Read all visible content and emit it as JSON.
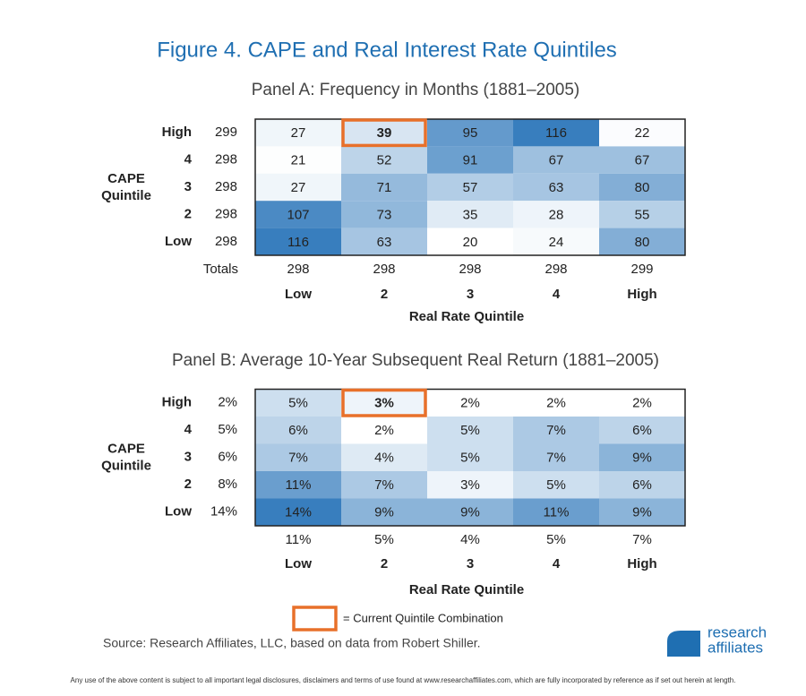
{
  "title": "Figure 4.  CAPE and Real Interest Rate Quintiles",
  "row_axis_title": [
    "CAPE",
    "Quintile"
  ],
  "row_labels": [
    "High",
    "4",
    "3",
    "2",
    "Low"
  ],
  "col_labels": [
    "Low",
    "2",
    "3",
    "4",
    "High"
  ],
  "col_axis_title": "Real Rate Quintile",
  "highlight": [
    0,
    1
  ],
  "panels": [
    {
      "title": "Panel A: Frequency in Months (1881–2005)",
      "row_totals": [
        "299",
        "298",
        "298",
        "298",
        "298"
      ],
      "totals_label": "Totals",
      "col_totals": [
        "298",
        "298",
        "298",
        "298",
        "299"
      ],
      "cells": [
        [
          {
            "value": 27,
            "label": "27"
          },
          {
            "value": 39,
            "label": "39"
          },
          {
            "value": 95,
            "label": "95"
          },
          {
            "value": 116,
            "label": "116"
          },
          {
            "value": 22,
            "label": "22"
          }
        ],
        [
          {
            "value": 21,
            "label": "21"
          },
          {
            "value": 52,
            "label": "52"
          },
          {
            "value": 91,
            "label": "91"
          },
          {
            "value": 67,
            "label": "67"
          },
          {
            "value": 67,
            "label": "67"
          }
        ],
        [
          {
            "value": 27,
            "label": "27"
          },
          {
            "value": 71,
            "label": "71"
          },
          {
            "value": 57,
            "label": "57"
          },
          {
            "value": 63,
            "label": "63"
          },
          {
            "value": 80,
            "label": "80"
          }
        ],
        [
          {
            "value": 107,
            "label": "107"
          },
          {
            "value": 73,
            "label": "73"
          },
          {
            "value": 35,
            "label": "35"
          },
          {
            "value": 28,
            "label": "28"
          },
          {
            "value": 55,
            "label": "55"
          }
        ],
        [
          {
            "value": 116,
            "label": "116"
          },
          {
            "value": 63,
            "label": "63"
          },
          {
            "value": 20,
            "label": "20"
          },
          {
            "value": 24,
            "label": "24"
          },
          {
            "value": 80,
            "label": "80"
          }
        ]
      ]
    },
    {
      "title": "Panel B: Average 10-Year Subsequent Real Return (1881–2005)",
      "row_totals": [
        "2%",
        "5%",
        "6%",
        "8%",
        "14%"
      ],
      "col_totals": [
        "11%",
        "5%",
        "4%",
        "5%",
        "7%"
      ],
      "cells": [
        [
          {
            "value": 5,
            "label": "5%"
          },
          {
            "value": 3,
            "label": "3%"
          },
          {
            "value": 2,
            "label": "2%"
          },
          {
            "value": 2,
            "label": "2%"
          },
          {
            "value": 2,
            "label": "2%"
          }
        ],
        [
          {
            "value": 6,
            "label": "6%"
          },
          {
            "value": 2,
            "label": "2%"
          },
          {
            "value": 5,
            "label": "5%"
          },
          {
            "value": 7,
            "label": "7%"
          },
          {
            "value": 6,
            "label": "6%"
          }
        ],
        [
          {
            "value": 7,
            "label": "7%"
          },
          {
            "value": 4,
            "label": "4%"
          },
          {
            "value": 5,
            "label": "5%"
          },
          {
            "value": 7,
            "label": "7%"
          },
          {
            "value": 9,
            "label": "9%"
          }
        ],
        [
          {
            "value": 11,
            "label": "11%"
          },
          {
            "value": 7,
            "label": "7%"
          },
          {
            "value": 3,
            "label": "3%"
          },
          {
            "value": 5,
            "label": "5%"
          },
          {
            "value": 6,
            "label": "6%"
          }
        ],
        [
          {
            "value": 14,
            "label": "14%"
          },
          {
            "value": 9,
            "label": "9%"
          },
          {
            "value": 9,
            "label": "9%"
          },
          {
            "value": 11,
            "label": "11%"
          },
          {
            "value": 9,
            "label": "9%"
          }
        ]
      ]
    }
  ],
  "legend": "= Current Quintile Combination",
  "source": "Source: Research Affiliates, LLC, based on data from Robert Shiller.",
  "logo": [
    "research",
    "affiliates"
  ],
  "disclaimer": "Any use of the above content is subject to all important legal disclosures, disclaimers and terms of use found at www.researchaffiliates.com, which are fully incorporated by reference as if set out herein at length."
}
